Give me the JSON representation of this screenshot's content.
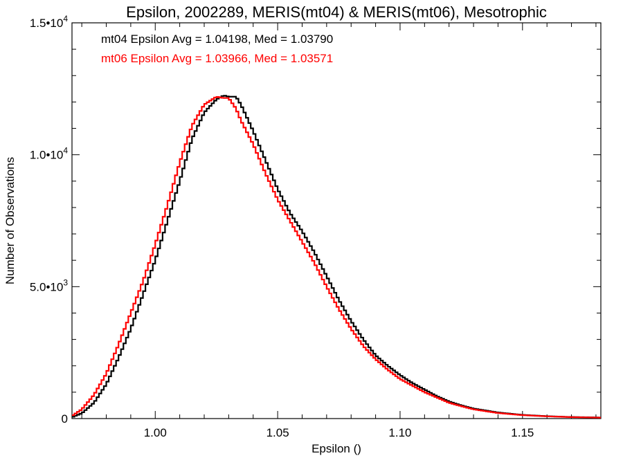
{
  "chart_data": {
    "type": "line",
    "title": "Epsilon, 2002289, MERIS(mt04) & MERIS(mt06), Mesotrophic",
    "xlabel": "Epsilon ()",
    "ylabel": "Number of Observations",
    "xlim": [
      0.966,
      1.182
    ],
    "ylim": [
      0,
      15000
    ],
    "x_ticks": [
      1.0,
      1.05,
      1.1,
      1.15
    ],
    "x_tick_labels": [
      "1.00",
      "1.05",
      "1.10",
      "1.15"
    ],
    "y_ticks": [
      0,
      5000,
      10000,
      15000
    ],
    "y_tick_labels": [
      {
        "mantissa": "0",
        "exp": ""
      },
      {
        "mantissa": "5.0•10",
        "exp": "3"
      },
      {
        "mantissa": "1.0•10",
        "exp": "4"
      },
      {
        "mantissa": "1.5•10",
        "exp": "4"
      }
    ],
    "grid": false,
    "step": true,
    "annotations": [
      {
        "text": "mt04 Epsilon Avg = 1.04198, Med = 1.03790",
        "color": "#000000"
      },
      {
        "text": "mt06 Epsilon Avg = 1.03966, Med = 1.03571",
        "color": "#ff0000"
      }
    ],
    "series": [
      {
        "color": "#000000",
        "x": [
          0.966,
          0.97,
          0.975,
          0.98,
          0.985,
          0.99,
          0.995,
          1.0,
          1.005,
          1.01,
          1.015,
          1.02,
          1.025,
          1.028,
          1.03,
          1.033,
          1.035,
          1.04,
          1.045,
          1.05,
          1.055,
          1.06,
          1.065,
          1.07,
          1.075,
          1.08,
          1.085,
          1.09,
          1.095,
          1.1,
          1.105,
          1.11,
          1.115,
          1.12,
          1.125,
          1.13,
          1.14,
          1.15,
          1.16,
          1.17,
          1.182
        ],
        "y": [
          50,
          200,
          600,
          1300,
          2300,
          3400,
          4700,
          6000,
          7500,
          9000,
          10600,
          11600,
          12100,
          12250,
          12200,
          12200,
          11900,
          10900,
          9800,
          8700,
          7800,
          7100,
          6300,
          5400,
          4500,
          3700,
          3000,
          2400,
          2000,
          1650,
          1350,
          1100,
          850,
          650,
          500,
          380,
          230,
          140,
          90,
          60,
          40
        ]
      },
      {
        "color": "#ff0000",
        "x": [
          0.966,
          0.97,
          0.975,
          0.98,
          0.985,
          0.99,
          0.995,
          1.0,
          1.005,
          1.01,
          1.015,
          1.02,
          1.025,
          1.028,
          1.03,
          1.033,
          1.035,
          1.04,
          1.045,
          1.05,
          1.055,
          1.06,
          1.065,
          1.07,
          1.075,
          1.08,
          1.085,
          1.09,
          1.095,
          1.1,
          1.105,
          1.11,
          1.115,
          1.12,
          1.125,
          1.13,
          1.14,
          1.15,
          1.16,
          1.17,
          1.182
        ],
        "y": [
          100,
          350,
          900,
          1700,
          2800,
          4000,
          5200,
          6600,
          8100,
          9700,
          11100,
          11900,
          12200,
          12150,
          12150,
          11750,
          11300,
          10400,
          9300,
          8300,
          7500,
          6700,
          5900,
          5000,
          4150,
          3400,
          2750,
          2250,
          1850,
          1500,
          1250,
          1000,
          800,
          600,
          470,
          350,
          210,
          130,
          85,
          55,
          35
        ]
      }
    ]
  }
}
